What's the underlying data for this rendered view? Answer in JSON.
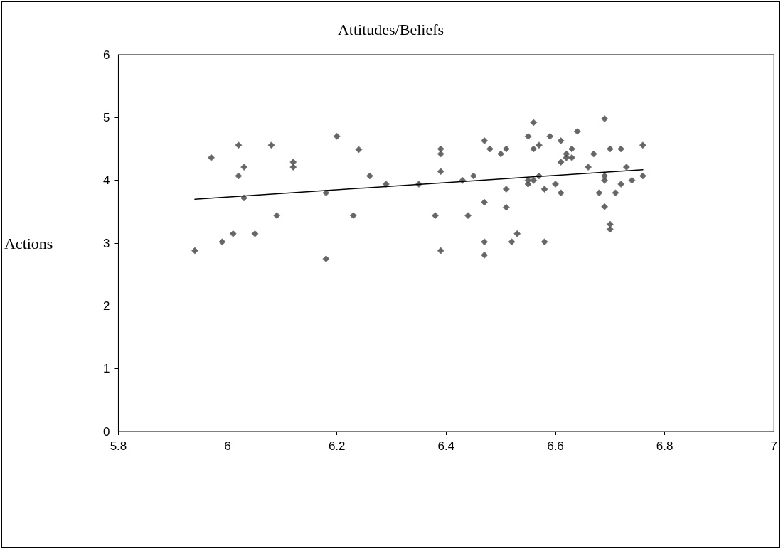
{
  "chart_data": {
    "type": "scatter",
    "title": "Attitudes/Beliefs",
    "ylabel": "Actions",
    "xlim": [
      5.8,
      7
    ],
    "xticks": [
      5.8,
      6,
      6.2,
      6.4,
      6.6,
      6.8,
      7
    ],
    "ylim": [
      0,
      6
    ],
    "yticks": [
      0,
      1,
      2,
      3,
      4,
      5,
      6
    ],
    "grid": false,
    "marker": "diamond",
    "series": [
      {
        "color": "#404040",
        "x": [
          5.97,
          6.02,
          6.08,
          6.2,
          6.24,
          6.03,
          6.02,
          6.12,
          6.12,
          6.26,
          6.29,
          6.03,
          6.18,
          6.09,
          6.23,
          6.01,
          6.05,
          5.99,
          5.94,
          6.18,
          6.35,
          6.39,
          6.39,
          6.39,
          6.43,
          6.45,
          6.47,
          6.48,
          6.5,
          6.51,
          6.55,
          6.56,
          6.56,
          6.57,
          6.59,
          6.61,
          6.64,
          6.62,
          6.63,
          6.62,
          6.63,
          6.61,
          6.55,
          6.55,
          6.56,
          6.57,
          6.51,
          6.58,
          6.6,
          6.61,
          6.47,
          6.51,
          6.38,
          6.44,
          6.53,
          6.47,
          6.52,
          6.58,
          6.39,
          6.47,
          6.69,
          6.67,
          6.7,
          6.72,
          6.76,
          6.66,
          6.73,
          6.69,
          6.69,
          6.76,
          6.74,
          6.72,
          6.68,
          6.71,
          6.69,
          6.7,
          6.7
        ],
        "values": [
          4.36,
          4.56,
          4.56,
          4.7,
          4.49,
          4.21,
          4.07,
          4.29,
          4.21,
          4.07,
          3.94,
          3.72,
          3.8,
          3.44,
          3.44,
          3.15,
          3.15,
          3.02,
          2.88,
          2.75,
          3.94,
          4.5,
          4.42,
          4.14,
          4.0,
          4.07,
          4.63,
          4.5,
          4.42,
          4.5,
          4.7,
          4.92,
          4.5,
          4.56,
          4.7,
          4.63,
          4.78,
          4.42,
          4.5,
          4.36,
          4.36,
          4.29,
          4.0,
          3.94,
          4.0,
          4.07,
          3.86,
          3.86,
          3.94,
          3.8,
          3.65,
          3.57,
          3.44,
          3.44,
          3.15,
          3.02,
          3.02,
          3.02,
          2.88,
          2.81,
          4.98,
          4.42,
          4.5,
          4.5,
          4.56,
          4.21,
          4.21,
          4.07,
          4.0,
          4.07,
          4.0,
          3.94,
          3.8,
          3.8,
          3.58,
          3.3,
          3.22
        ]
      },
      {
        "type": "line",
        "color": "#000000",
        "marker": "none",
        "line_style": "solid",
        "x": [
          5.94,
          6.76
        ],
        "values": [
          3.7,
          4.17
        ]
      }
    ]
  }
}
